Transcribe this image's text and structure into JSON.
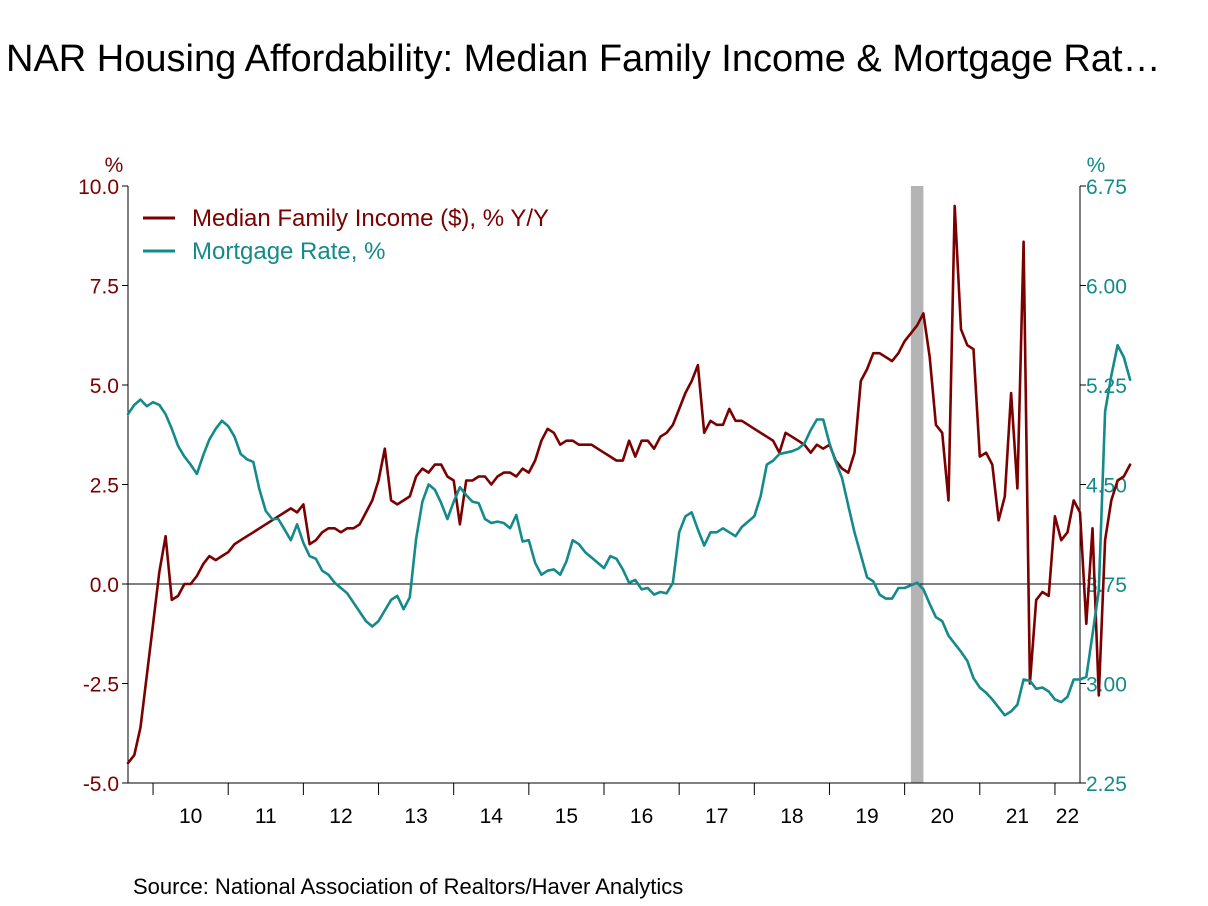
{
  "chart_data": {
    "type": "line",
    "title": "NAR Housing Affordability: Median Family Income & Mortgage Rat…",
    "source": "Source:  National Association of Realtors/Haver Analytics",
    "left_axis": {
      "unit": "%",
      "ticks": [
        "10.0",
        "7.5",
        "5.0",
        "2.5",
        "0.0",
        "-2.5",
        "-5.0"
      ],
      "ylim": [
        -5,
        10
      ]
    },
    "right_axis": {
      "unit": "%",
      "ticks": [
        "6.75",
        "6.00",
        "5.25",
        "4.50",
        "3.75",
        "3.00",
        "2.25"
      ],
      "ylim": [
        2.25,
        6.75
      ]
    },
    "x_ticks": [
      "10",
      "11",
      "12",
      "13",
      "14",
      "15",
      "16",
      "17",
      "18",
      "19",
      "20",
      "21",
      "22"
    ],
    "xlim": [
      2009.6667,
      2022.3333
    ],
    "recession": [
      2020.0833,
      2020.25
    ],
    "legend_placement": "top-left",
    "colors": {
      "income": "#7b0000",
      "mortgage": "#148a8a",
      "recession": "#b4b4b4"
    },
    "series": [
      {
        "name": "Median Family Income ($), % Y/Y",
        "axis": "left",
        "color": "#7b0000",
        "x_start": 2009.6667,
        "step": 0.083333,
        "values": [
          -4.5,
          -4.3,
          -3.6,
          -2.3,
          -1,
          0.3,
          1.2,
          -0.4,
          -0.3,
          0,
          0,
          0.2,
          0.5,
          0.7,
          0.6,
          0.7,
          0.8,
          1,
          1.1,
          1.2,
          1.3,
          1.4,
          1.5,
          1.6,
          1.7,
          1.8,
          1.9,
          1.8,
          2,
          1,
          1.1,
          1.3,
          1.4,
          1.4,
          1.3,
          1.4,
          1.4,
          1.5,
          1.8,
          2.1,
          2.6,
          3.4,
          2.1,
          2,
          2.1,
          2.2,
          2.7,
          2.9,
          2.8,
          3,
          3,
          2.7,
          2.6,
          1.5,
          2.6,
          2.6,
          2.7,
          2.7,
          2.5,
          2.7,
          2.8,
          2.8,
          2.7,
          2.9,
          2.8,
          3.1,
          3.6,
          3.9,
          3.8,
          3.5,
          3.6,
          3.6,
          3.5,
          3.5,
          3.5,
          3.4,
          3.3,
          3.2,
          3.1,
          3.1,
          3.6,
          3.2,
          3.6,
          3.6,
          3.4,
          3.7,
          3.8,
          4,
          4.4,
          4.8,
          5.1,
          5.5,
          3.8,
          4.1,
          4.0,
          4.0,
          4.4,
          4.1,
          4.1,
          4.0,
          3.9,
          3.8,
          3.7,
          3.6,
          3.3,
          3.8,
          3.7,
          3.6,
          3.5,
          3.3,
          3.5,
          3.4,
          3.5,
          3.1,
          2.9,
          2.8,
          3.3,
          5.1,
          5.4,
          5.8,
          5.8,
          5.7,
          5.6,
          5.8,
          6.1,
          6.3,
          6.5,
          6.8,
          5.7,
          4.0,
          3.8,
          2.1,
          9.5,
          6.4,
          6.0,
          5.9,
          3.2,
          3.3,
          3.0,
          1.6,
          2.2,
          4.8,
          2.4,
          8.6,
          -2.5,
          -0.4,
          -0.2,
          -0.3,
          1.7,
          1.1,
          1.3,
          2.1,
          1.8,
          -1.0,
          1.4,
          -2.8,
          1.1,
          2.1,
          2.6,
          2.7,
          3.0
        ]
      },
      {
        "name": "Mortgage Rate, %",
        "axis": "right",
        "color": "#148a8a",
        "x_start": 2009.6667,
        "step": 0.083333,
        "values": [
          5.03,
          5.1,
          5.14,
          5.09,
          5.12,
          5.1,
          5.03,
          4.92,
          4.79,
          4.71,
          4.65,
          4.58,
          4.72,
          4.84,
          4.92,
          4.98,
          4.94,
          4.86,
          4.73,
          4.69,
          4.67,
          4.46,
          4.3,
          4.24,
          4.24,
          4.16,
          4.08,
          4.2,
          4.06,
          3.96,
          3.94,
          3.85,
          3.82,
          3.76,
          3.72,
          3.68,
          3.61,
          3.54,
          3.47,
          3.43,
          3.47,
          3.55,
          3.63,
          3.66,
          3.56,
          3.65,
          4.09,
          4.37,
          4.5,
          4.46,
          4.36,
          4.24,
          4.37,
          4.48,
          4.42,
          4.37,
          4.36,
          4.24,
          4.21,
          4.22,
          4.21,
          4.17,
          4.27,
          4.07,
          4.08,
          3.91,
          3.82,
          3.85,
          3.86,
          3.82,
          3.92,
          4.08,
          4.05,
          3.99,
          3.95,
          3.91,
          3.87,
          3.96,
          3.94,
          3.86,
          3.76,
          3.78,
          3.71,
          3.72,
          3.67,
          3.69,
          3.68,
          3.76,
          4.14,
          4.26,
          4.29,
          4.16,
          4.04,
          4.14,
          4.14,
          4.17,
          4.14,
          4.11,
          4.18,
          4.22,
          4.26,
          4.41,
          4.65,
          4.68,
          4.73,
          4.74,
          4.75,
          4.77,
          4.81,
          4.91,
          4.99,
          4.99,
          4.81,
          4.67,
          4.55,
          4.34,
          4.14,
          3.97,
          3.8,
          3.77,
          3.67,
          3.64,
          3.64,
          3.72,
          3.72,
          3.74,
          3.76,
          3.71,
          3.6,
          3.5,
          3.47,
          3.36,
          3.3,
          3.24,
          3.17,
          3.04,
          2.97,
          2.93,
          2.88,
          2.82,
          2.76,
          2.79,
          2.84,
          3.03,
          3.02,
          2.96,
          2.97,
          2.94,
          2.88,
          2.86,
          2.9,
          3.03,
          3.03,
          3.05,
          3.37,
          3.7,
          5.05,
          5.32,
          5.55,
          5.46,
          5.29
        ]
      }
    ]
  },
  "legend": [
    {
      "label": "Median Family Income ($), % Y/Y"
    },
    {
      "label": "Mortgage Rate, %"
    }
  ]
}
